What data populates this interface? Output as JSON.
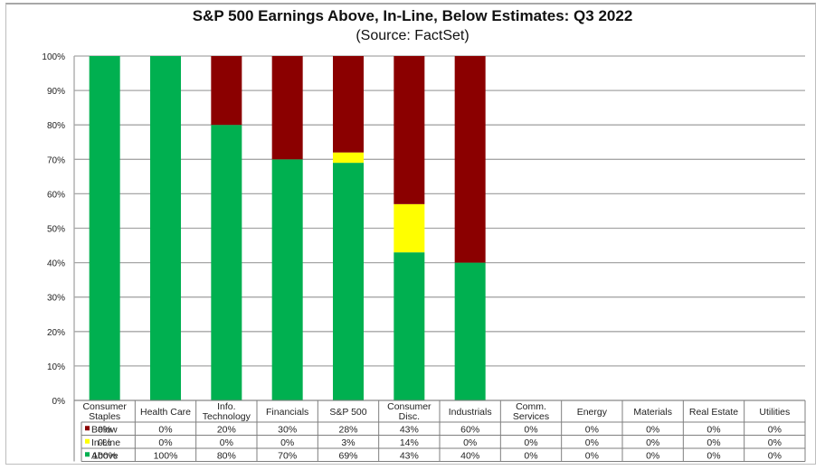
{
  "chart_data": {
    "type": "bar",
    "stacked": true,
    "title": "S&P 500 Earnings Above, In-Line, Below Estimates: Q3 2022",
    "subtitle": "(Source: FactSet)",
    "xlabel": "",
    "ylabel": "",
    "ylim": [
      0,
      100
    ],
    "yticks": [
      "0%",
      "10%",
      "20%",
      "30%",
      "40%",
      "50%",
      "60%",
      "70%",
      "80%",
      "90%",
      "100%"
    ],
    "grid": true,
    "legend": "data-table-left",
    "categories": [
      [
        "Consumer",
        "Staples"
      ],
      [
        "Health Care"
      ],
      [
        "Info.",
        "Technology"
      ],
      [
        "Financials"
      ],
      [
        "S&P 500"
      ],
      [
        "Consumer",
        "Disc."
      ],
      [
        "Industrials"
      ],
      [
        "Comm.",
        "Services"
      ],
      [
        "Energy"
      ],
      [
        "Materials"
      ],
      [
        "Real Estate"
      ],
      [
        "Utilities"
      ]
    ],
    "series": [
      {
        "name": "Below",
        "color": "#8b0000",
        "values": [
          0,
          0,
          20,
          30,
          28,
          43,
          60,
          0,
          0,
          0,
          0,
          0
        ]
      },
      {
        "name": "In-Line",
        "color": "#ffff00",
        "values": [
          0,
          0,
          0,
          0,
          3,
          14,
          0,
          0,
          0,
          0,
          0,
          0
        ]
      },
      {
        "name": "Above",
        "color": "#00b050",
        "values": [
          100,
          100,
          80,
          70,
          69,
          43,
          40,
          0,
          0,
          0,
          0,
          0
        ]
      }
    ],
    "stack_order_bottom_to_top": [
      "Above",
      "In-Line",
      "Below"
    ]
  }
}
